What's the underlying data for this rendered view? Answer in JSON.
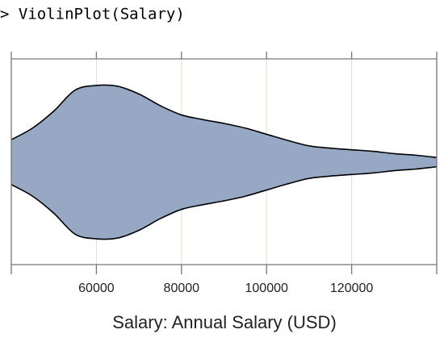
{
  "command": "> ViolinPlot(Salary)",
  "chart_data": {
    "type": "violin",
    "xlabel": "Salary: Annual Salary (USD)",
    "x": [
      40000,
      45000,
      50000,
      55000,
      60000,
      65000,
      70000,
      75000,
      80000,
      85000,
      90000,
      95000,
      100000,
      105000,
      110000,
      115000,
      120000,
      125000,
      130000,
      135000,
      140000
    ],
    "density": [
      0.29,
      0.44,
      0.66,
      0.93,
      0.99,
      0.98,
      0.88,
      0.73,
      0.61,
      0.55,
      0.5,
      0.44,
      0.36,
      0.28,
      0.21,
      0.18,
      0.16,
      0.14,
      0.11,
      0.09,
      0.06
    ],
    "color": "#97a8c5",
    "xlim": [
      40000,
      140000
    ],
    "xticks": [
      60000,
      80000,
      100000,
      120000
    ],
    "grid": true
  }
}
